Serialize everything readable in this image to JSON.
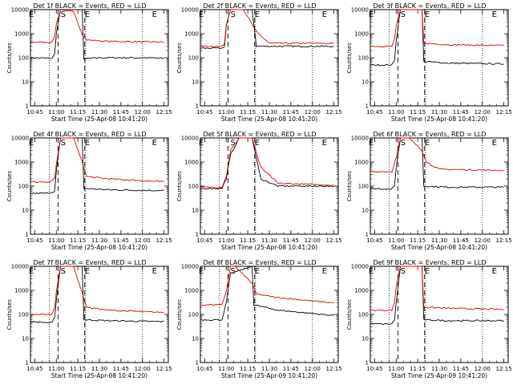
{
  "colors": {
    "events": "#000000",
    "lld": "#e00000",
    "axis": "#000000",
    "background": "#ffffff"
  },
  "chart_data": [
    {
      "type": "line",
      "title": "Det 1f BLACK = Events, RED = LLD",
      "xlabel": "Start Time (25-Apr-08 10:41:20)",
      "ylabel": "Counts/sec",
      "ylim": [
        1,
        10000
      ],
      "yscale": "log",
      "xlim": [
        10.7,
        12.3
      ],
      "x_ticks": [
        "10:45",
        "11:00",
        "11:15",
        "11:30",
        "11:45",
        "12:00",
        "12:15"
      ],
      "y_ticks": [
        "1",
        "10",
        "100",
        "1000",
        "10000"
      ],
      "markers": [
        "E",
        "S",
        "E",
        "E"
      ],
      "series": [
        {
          "name": "Events",
          "color": "#000000",
          "x": [
            10.7,
            10.95,
            10.98,
            11.0,
            11.05,
            11.1,
            11.3,
            11.32,
            11.5,
            12.0,
            12.25
          ],
          "values": [
            100,
            95,
            140,
            1000,
            10000,
            10000,
            10000,
            90,
            100,
            100,
            95
          ]
        },
        {
          "name": "LLD",
          "color": "#e00000",
          "x": [
            10.7,
            10.95,
            10.98,
            11.0,
            11.05,
            11.2,
            11.3,
            11.35,
            11.6,
            12.25
          ],
          "values": [
            450,
            440,
            800,
            2500,
            10000,
            8000,
            1000,
            550,
            480,
            450
          ]
        }
      ]
    },
    {
      "type": "line",
      "title": "Det 2f BLACK = Events, RED = LLD",
      "xlabel": "Start Time (25-Apr-08 10:41:20)",
      "ylabel": "Counts/sec",
      "ylim": [
        1,
        10000
      ],
      "yscale": "log",
      "xlim": [
        10.7,
        12.3
      ],
      "x_ticks": [
        "10:45",
        "11:00",
        "11:15",
        "11:30",
        "11:45",
        "12:00",
        "12:15"
      ],
      "y_ticks": [
        "1",
        "10",
        "100",
        "1000",
        "10000"
      ],
      "markers": [
        "E",
        "S",
        "E",
        "E"
      ],
      "series": [
        {
          "name": "Events",
          "color": "#000000",
          "x": [
            10.7,
            10.95,
            10.98,
            11.0,
            11.05,
            11.1,
            11.3,
            11.35,
            12.25
          ],
          "values": [
            250,
            250,
            300,
            2000,
            10000,
            10000,
            10000,
            300,
            300
          ]
        },
        {
          "name": "LLD",
          "color": "#e00000",
          "x": [
            10.7,
            10.95,
            10.98,
            11.0,
            11.05,
            11.2,
            11.35,
            11.5,
            12.25
          ],
          "values": [
            300,
            300,
            400,
            2500,
            10000,
            10000,
            1200,
            400,
            400
          ]
        }
      ]
    },
    {
      "type": "line",
      "title": "Det 3f BLACK = Events, RED = LLD",
      "xlabel": "Start Time (25-Apr-08 10:41:20)",
      "ylabel": "Counts/sec",
      "ylim": [
        1,
        10000
      ],
      "yscale": "log",
      "xlim": [
        10.7,
        12.3
      ],
      "x_ticks": [
        "10:45",
        "11:00",
        "11:15",
        "11:30",
        "11:45",
        "12:00",
        "12:15"
      ],
      "y_ticks": [
        "1",
        "10",
        "100",
        "1000",
        "10000"
      ],
      "markers": [
        "E",
        "S",
        "E",
        "E"
      ],
      "series": [
        {
          "name": "Events",
          "color": "#000000",
          "x": [
            10.7,
            10.95,
            10.98,
            11.0,
            11.05,
            11.3,
            11.32,
            11.6,
            12.25
          ],
          "values": [
            50,
            50,
            80,
            500,
            10000,
            10000,
            70,
            60,
            55
          ]
        },
        {
          "name": "LLD",
          "color": "#e00000",
          "x": [
            10.7,
            10.95,
            10.98,
            11.0,
            11.05,
            11.3,
            11.32,
            11.6,
            12.25
          ],
          "values": [
            300,
            300,
            600,
            2000,
            10000,
            10000,
            400,
            350,
            320
          ]
        }
      ]
    },
    {
      "type": "line",
      "title": "Det 4f BLACK = Events, RED = LLD",
      "xlabel": "Start Time (25-Apr-08 10:41:20)",
      "ylabel": "Counts/sec",
      "ylim": [
        1,
        10000
      ],
      "yscale": "log",
      "xlim": [
        10.7,
        12.3
      ],
      "x_ticks": [
        "10:45",
        "11:00",
        "11:15",
        "11:30",
        "11:45",
        "12:00",
        "12:15"
      ],
      "y_ticks": [
        "1",
        "10",
        "100",
        "1000",
        "10000"
      ],
      "markers": [
        "E",
        "S",
        "E",
        "E"
      ],
      "series": [
        {
          "name": "Events",
          "color": "#000000",
          "x": [
            10.7,
            10.9,
            10.98,
            11.0,
            11.05,
            11.3,
            11.32,
            11.6,
            12.25
          ],
          "values": [
            50,
            50,
            60,
            400,
            10000,
            10000,
            80,
            70,
            65
          ]
        },
        {
          "name": "LLD",
          "color": "#e00000",
          "x": [
            10.7,
            10.9,
            10.98,
            11.0,
            11.05,
            11.2,
            11.3,
            11.35,
            11.6,
            12.25
          ],
          "values": [
            150,
            140,
            200,
            800,
            10000,
            10000,
            1000,
            250,
            200,
            150
          ]
        }
      ]
    },
    {
      "type": "line",
      "title": "Det 5f BLACK = Events, RED = LLD",
      "xlabel": "Start Time (25-Apr-08 10:41:20)",
      "ylabel": "Counts/sec",
      "ylim": [
        1,
        10000
      ],
      "yscale": "log",
      "xlim": [
        10.7,
        12.3
      ],
      "x_ticks": [
        "10:45",
        "11:00",
        "11:15",
        "11:30",
        "11:45",
        "12:00",
        "12:15"
      ],
      "y_ticks": [
        "1",
        "10",
        "100",
        "1000",
        "10000"
      ],
      "markers": [
        "E",
        "S",
        "E",
        "E"
      ],
      "series": [
        {
          "name": "Events",
          "color": "#000000",
          "x": [
            10.7,
            10.95,
            11.0,
            11.05,
            11.15,
            11.3,
            11.4,
            11.6,
            12.25
          ],
          "values": [
            80,
            80,
            200,
            2000,
            10000,
            10000,
            200,
            100,
            100
          ]
        },
        {
          "name": "LLD",
          "color": "#e00000",
          "x": [
            10.7,
            10.95,
            11.0,
            11.05,
            11.15,
            11.3,
            11.4,
            11.6,
            12.25
          ],
          "values": [
            90,
            90,
            250,
            3000,
            10000,
            10000,
            600,
            130,
            110
          ]
        }
      ]
    },
    {
      "type": "line",
      "title": "Det 6f BLACK = Events, RED = LLD",
      "xlabel": "Start Time (25-Apr-08 10:41:20)",
      "ylabel": "Counts/sec",
      "ylim": [
        1,
        10000
      ],
      "yscale": "log",
      "xlim": [
        10.7,
        12.3
      ],
      "x_ticks": [
        "10:45",
        "11:00",
        "11:15",
        "11:30",
        "11:45",
        "12:00",
        "12:15"
      ],
      "y_ticks": [
        "1",
        "10",
        "100",
        "1000",
        "10000"
      ],
      "markers": [
        "E",
        "S",
        "E",
        "E"
      ],
      "series": [
        {
          "name": "Events",
          "color": "#000000",
          "x": [
            10.7,
            10.95,
            10.98,
            11.0,
            11.05,
            11.3,
            11.32,
            11.6,
            12.25
          ],
          "values": [
            80,
            75,
            100,
            600,
            10000,
            10000,
            100,
            90,
            90
          ]
        },
        {
          "name": "LLD",
          "color": "#e00000",
          "x": [
            10.7,
            10.95,
            11.0,
            11.05,
            11.15,
            11.3,
            11.35,
            11.5,
            12.25
          ],
          "values": [
            400,
            400,
            1500,
            10000,
            10000,
            3000,
            1000,
            500,
            450
          ]
        }
      ]
    },
    {
      "type": "line",
      "title": "Det 7f BLACK = Events, RED = LLD",
      "xlabel": "Start Time (25-Apr-08 10:41:20)",
      "ylabel": "Counts/sec",
      "ylim": [
        1,
        10000
      ],
      "yscale": "log",
      "xlim": [
        10.7,
        12.3
      ],
      "x_ticks": [
        "10:45",
        "11:00",
        "11:15",
        "11:30",
        "11:45",
        "12:00",
        "12:15"
      ],
      "y_ticks": [
        "1",
        "10",
        "100",
        "1000",
        "10000"
      ],
      "markers": [
        "E",
        "S",
        "E",
        "E"
      ],
      "series": [
        {
          "name": "Events",
          "color": "#000000",
          "x": [
            10.7,
            10.95,
            10.98,
            11.0,
            11.05,
            11.3,
            11.32,
            11.6,
            12.25
          ],
          "values": [
            50,
            45,
            70,
            400,
            10000,
            10000,
            60,
            55,
            50
          ]
        },
        {
          "name": "LLD",
          "color": "#e00000",
          "x": [
            10.7,
            10.95,
            10.98,
            11.0,
            11.05,
            11.2,
            11.3,
            11.35,
            11.6,
            12.25
          ],
          "values": [
            100,
            100,
            200,
            900,
            10000,
            10000,
            800,
            200,
            150,
            120
          ]
        }
      ]
    },
    {
      "type": "line",
      "title": "Det 8f BLACK = Events, RED = LLD",
      "xlabel": "Start Time (25-Apr-09 10:41:20)",
      "ylabel": "Counts/sec",
      "ylim": [
        1,
        10000
      ],
      "yscale": "log",
      "xlim": [
        10.7,
        12.3
      ],
      "x_ticks": [
        "10:45",
        "11:00",
        "11:15",
        "11:30",
        "11:45",
        "12:00",
        "12:15"
      ],
      "y_ticks": [
        "1",
        "10",
        "100",
        "1000",
        "10000"
      ],
      "markers": [
        "E",
        "S",
        "E",
        "E"
      ],
      "series": [
        {
          "name": "Events",
          "color": "#000000",
          "x": [
            10.7,
            10.95,
            11.0,
            11.05,
            11.3,
            11.32,
            11.6,
            12.25
          ],
          "values": [
            60,
            60,
            300,
            5000,
            10000,
            250,
            150,
            90
          ]
        },
        {
          "name": "LLD",
          "color": "#e00000",
          "x": [
            10.7,
            10.95,
            11.0,
            11.05,
            11.1,
            11.3,
            11.35,
            11.6,
            12.25
          ],
          "values": [
            250,
            250,
            900,
            10000,
            10000,
            2000,
            700,
            500,
            300
          ]
        }
      ]
    },
    {
      "type": "line",
      "title": "Det 9f BLACK = Events, RED = LLD",
      "xlabel": "Start Time (25-Apr-09 10:41:20)",
      "ylabel": "Counts/sec",
      "ylim": [
        1,
        10000
      ],
      "yscale": "log",
      "xlim": [
        10.7,
        12.3
      ],
      "x_ticks": [
        "10:45",
        "11:00",
        "11:15",
        "11:30",
        "11:45",
        "12:00",
        "12:15"
      ],
      "y_ticks": [
        "1",
        "10",
        "100",
        "1000",
        "10000"
      ],
      "markers": [
        "E",
        "S",
        "E",
        "E"
      ],
      "series": [
        {
          "name": "Events",
          "color": "#000000",
          "x": [
            10.7,
            10.95,
            10.98,
            11.0,
            11.05,
            11.3,
            11.32,
            11.6,
            12.25
          ],
          "values": [
            40,
            40,
            60,
            300,
            10000,
            10000,
            60,
            55,
            55
          ]
        },
        {
          "name": "LLD",
          "color": "#e00000",
          "x": [
            10.7,
            10.95,
            10.98,
            11.0,
            11.05,
            11.3,
            11.32,
            11.6,
            12.25
          ],
          "values": [
            150,
            150,
            300,
            1500,
            10000,
            10000,
            200,
            180,
            160
          ]
        }
      ]
    }
  ]
}
